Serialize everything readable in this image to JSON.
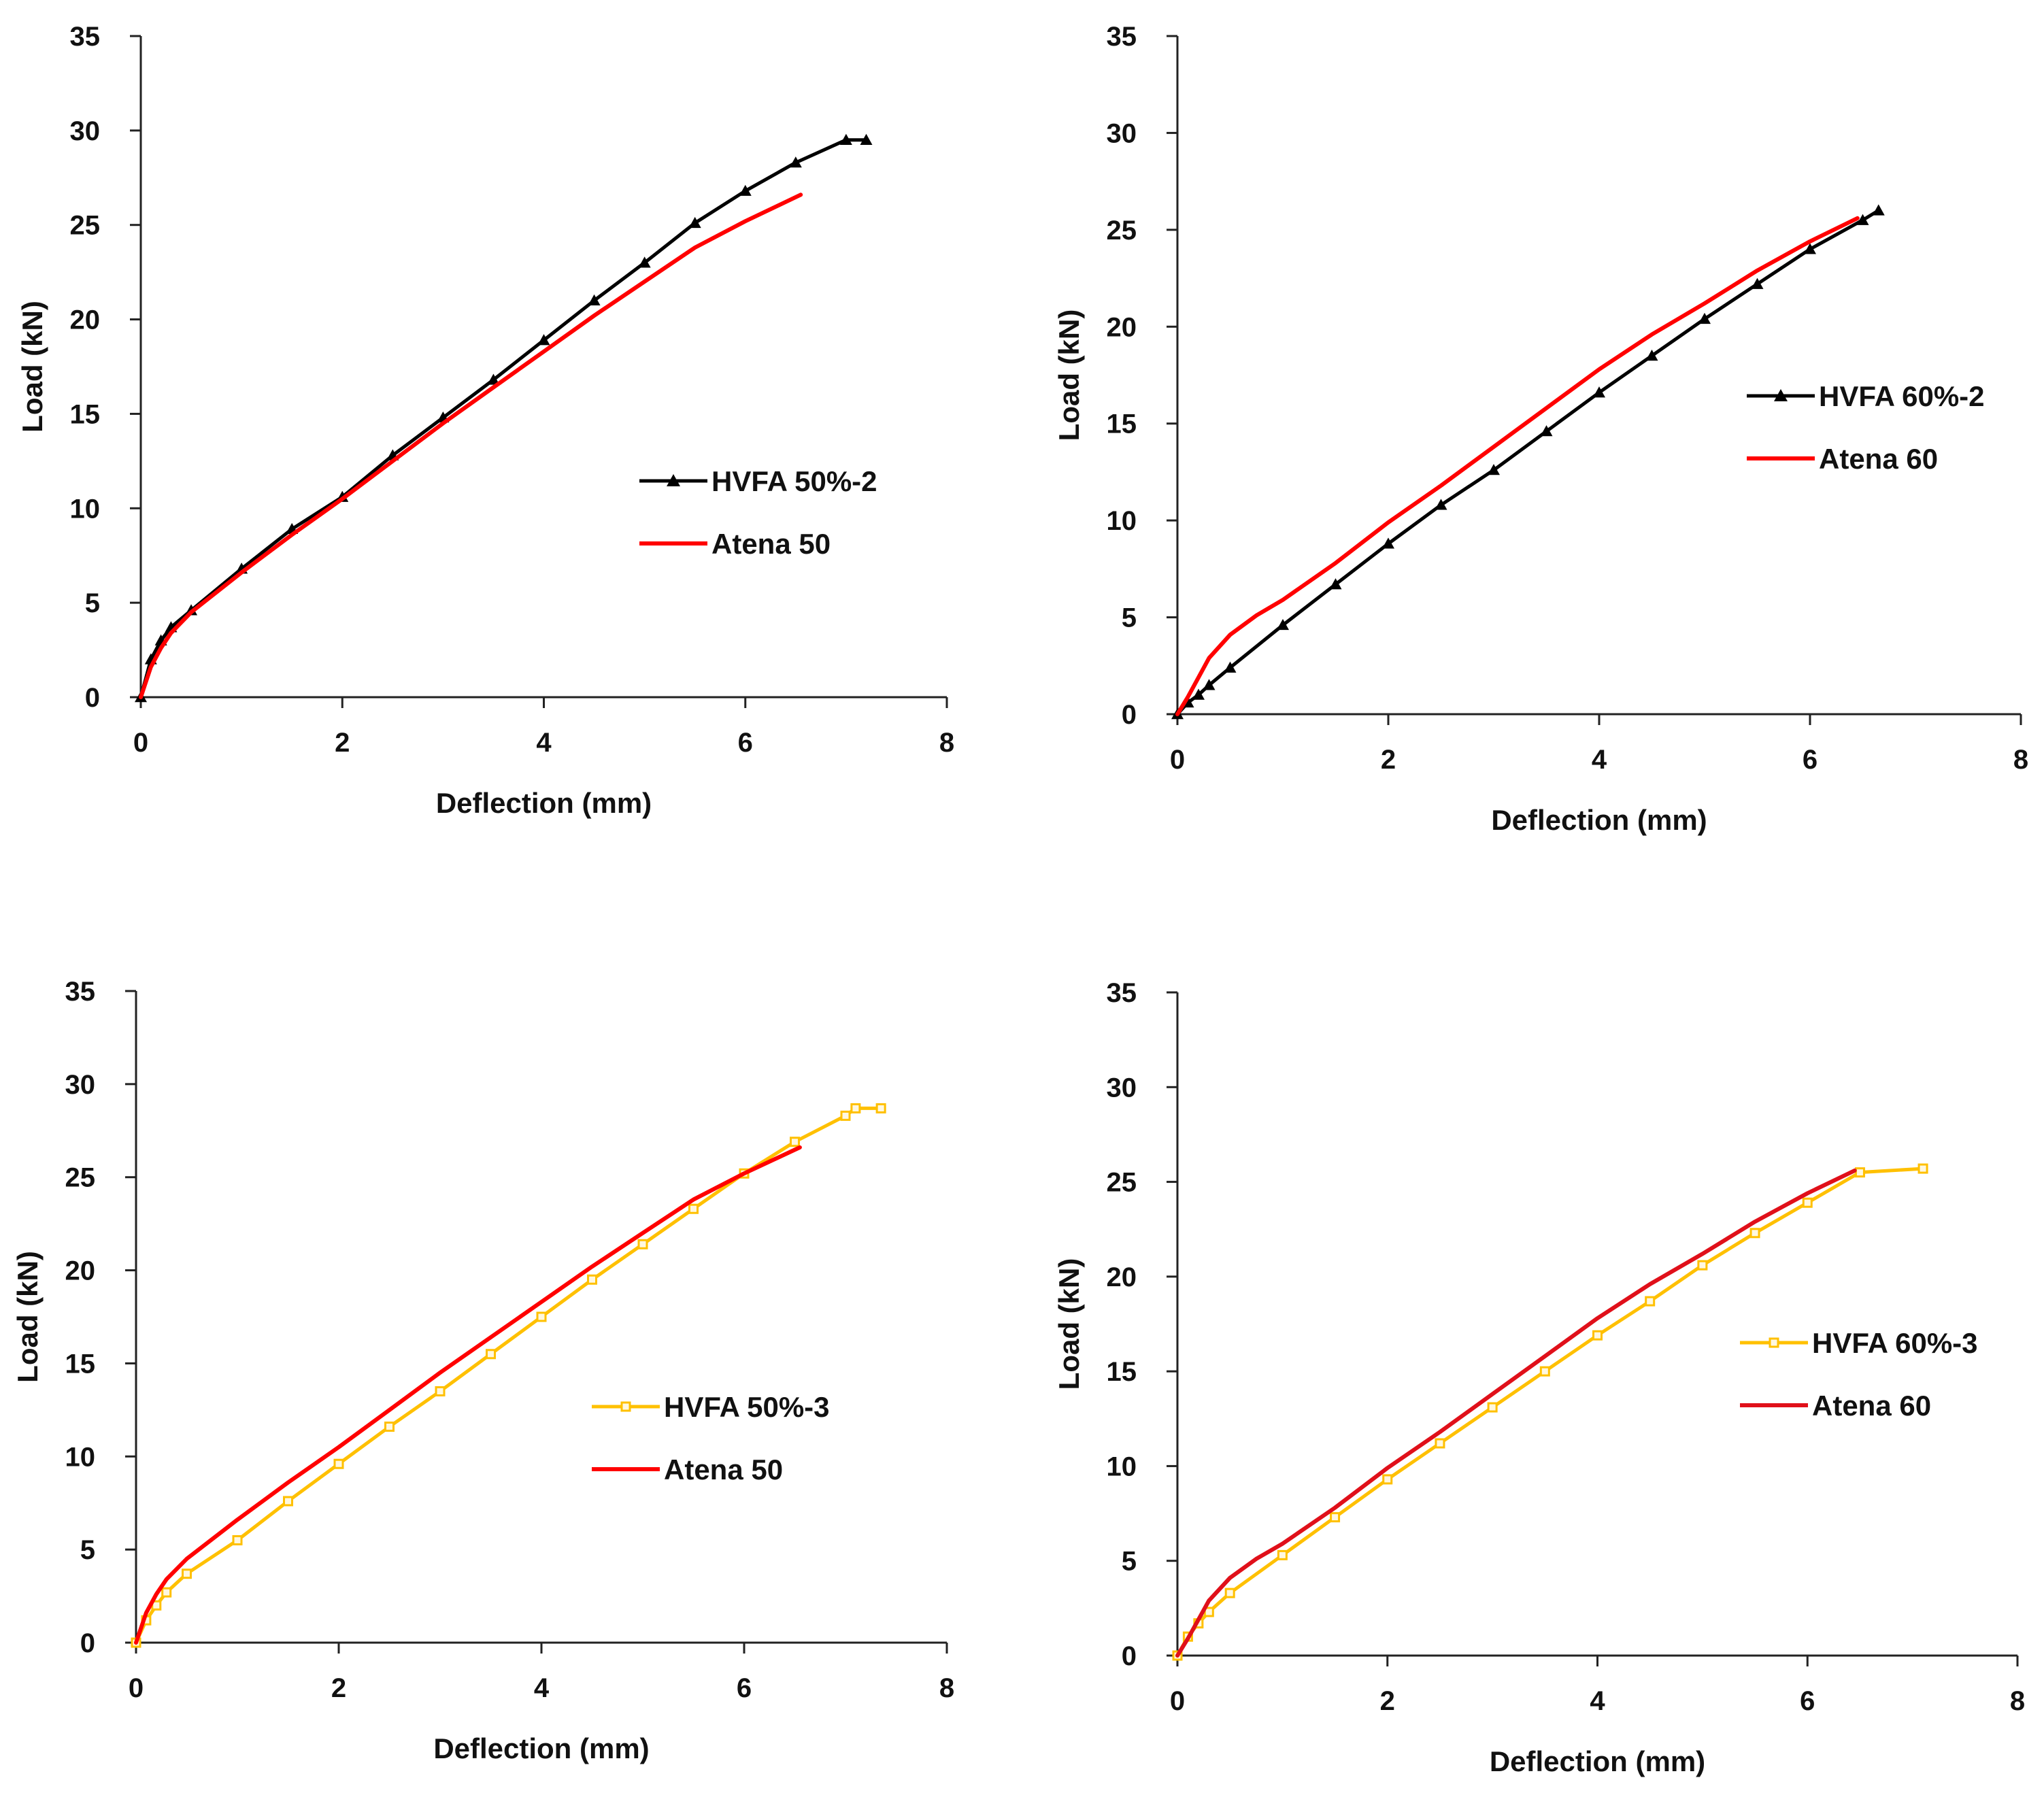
{
  "chart_data": [
    {
      "type": "line",
      "xlabel": "Deflection (mm)",
      "ylabel": "Load (kN)",
      "xlim": [
        0,
        8
      ],
      "ylim": [
        0,
        35
      ],
      "xticks": [
        0,
        2,
        4,
        6,
        8
      ],
      "yticks": [
        0,
        5,
        10,
        15,
        20,
        25,
        30,
        35
      ],
      "grid": false,
      "legend_position": "right-middle",
      "series": [
        {
          "name": "HVFA 50%-2",
          "color": "#000000",
          "marker": "triangle",
          "x": [
            0,
            0.1,
            0.2,
            0.3,
            0.5,
            1,
            1.5,
            2,
            2.5,
            3,
            3.5,
            4,
            4.5,
            5,
            5.5,
            6,
            6.5,
            7,
            7.2
          ],
          "y": [
            0,
            2.0,
            3.0,
            3.7,
            4.6,
            6.8,
            8.9,
            10.6,
            12.8,
            14.8,
            16.8,
            18.9,
            21.0,
            23.0,
            25.1,
            26.8,
            28.3,
            29.5,
            29.5
          ]
        },
        {
          "name": "Atena 50",
          "color": "#ff0000",
          "marker": "none",
          "x": [
            0,
            0.1,
            0.2,
            0.3,
            0.5,
            1,
            1.5,
            2,
            2.5,
            3,
            3.5,
            4,
            4.5,
            5,
            5.5,
            6,
            6.55
          ],
          "y": [
            0,
            1.6,
            2.6,
            3.4,
            4.5,
            6.6,
            8.6,
            10.5,
            12.5,
            14.5,
            16.4,
            18.3,
            20.2,
            22.0,
            23.8,
            25.2,
            26.6
          ]
        }
      ]
    },
    {
      "type": "line",
      "xlabel": "Deflection (mm)",
      "ylabel": "Load (kN)",
      "xlim": [
        0,
        8
      ],
      "ylim": [
        0,
        35
      ],
      "xticks": [
        0,
        2,
        4,
        6,
        8
      ],
      "yticks": [
        0,
        5,
        10,
        15,
        20,
        25,
        30,
        35
      ],
      "grid": false,
      "legend_position": "right-middle",
      "series": [
        {
          "name": "HVFA 60%-2",
          "color": "#000000",
          "marker": "triangle",
          "x": [
            0,
            0.1,
            0.2,
            0.3,
            0.5,
            1,
            1.5,
            2,
            2.5,
            3,
            3.5,
            4,
            4.5,
            5,
            5.5,
            6,
            6.5,
            6.65
          ],
          "y": [
            0,
            0.6,
            1.0,
            1.5,
            2.4,
            4.6,
            6.7,
            8.8,
            10.8,
            12.6,
            14.6,
            16.6,
            18.5,
            20.4,
            22.2,
            24.0,
            25.5,
            26.0
          ]
        },
        {
          "name": "Atena 60",
          "color": "#ff0000",
          "marker": "none",
          "x": [
            0,
            0.1,
            0.2,
            0.3,
            0.5,
            0.75,
            1,
            1.5,
            2,
            2.5,
            3,
            3.5,
            4,
            4.5,
            5,
            5.5,
            6,
            6.45
          ],
          "y": [
            0,
            0.9,
            1.9,
            2.9,
            4.1,
            5.1,
            5.9,
            7.8,
            9.9,
            11.8,
            13.8,
            15.8,
            17.8,
            19.6,
            21.2,
            22.9,
            24.4,
            25.6
          ]
        }
      ]
    },
    {
      "type": "line",
      "xlabel": "Deflection (mm)",
      "ylabel": "Load (kN)",
      "xlim": [
        0,
        8
      ],
      "ylim": [
        0,
        35
      ],
      "xticks": [
        0,
        2,
        4,
        6,
        8
      ],
      "yticks": [
        0,
        5,
        10,
        15,
        20,
        25,
        30,
        35
      ],
      "grid": false,
      "legend_position": "right-middle",
      "series": [
        {
          "name": "HVFA 50%-3",
          "color": "#ffc000",
          "marker": "square",
          "x": [
            0,
            0.1,
            0.2,
            0.3,
            0.5,
            1,
            1.5,
            2,
            2.5,
            3,
            3.5,
            4,
            4.5,
            5,
            5.5,
            6,
            6.5,
            7,
            7.1,
            7.35
          ],
          "y": [
            0,
            1.2,
            2.0,
            2.7,
            3.7,
            5.5,
            7.6,
            9.6,
            11.6,
            13.5,
            15.5,
            17.5,
            19.5,
            21.4,
            23.3,
            25.2,
            26.9,
            28.3,
            28.7,
            28.7
          ]
        },
        {
          "name": "Atena 50",
          "color": "#ff0000",
          "marker": "none",
          "x": [
            0,
            0.1,
            0.2,
            0.3,
            0.5,
            1,
            1.5,
            2,
            2.5,
            3,
            3.5,
            4,
            4.5,
            5,
            5.5,
            6,
            6.55
          ],
          "y": [
            0,
            1.6,
            2.6,
            3.4,
            4.5,
            6.6,
            8.6,
            10.5,
            12.5,
            14.5,
            16.4,
            18.3,
            20.2,
            22.0,
            23.8,
            25.2,
            26.6
          ]
        }
      ]
    },
    {
      "type": "line",
      "xlabel": "Deflection (mm)",
      "ylabel": "Load (kN)",
      "xlim": [
        0,
        8
      ],
      "ylim": [
        0,
        35
      ],
      "xticks": [
        0,
        2,
        4,
        6,
        8
      ],
      "yticks": [
        0,
        5,
        10,
        15,
        20,
        25,
        30,
        35
      ],
      "grid": false,
      "legend_position": "right-middle",
      "series": [
        {
          "name": "HVFA 60%-3",
          "color": "#ffc000",
          "marker": "square",
          "x": [
            0,
            0.1,
            0.2,
            0.3,
            0.5,
            1,
            1.5,
            2,
            2.5,
            3,
            3.5,
            4,
            4.5,
            5,
            5.5,
            6,
            6.5,
            7.1
          ],
          "y": [
            0,
            1.0,
            1.7,
            2.3,
            3.3,
            5.3,
            7.3,
            9.3,
            11.2,
            13.1,
            15.0,
            16.9,
            18.7,
            20.6,
            22.3,
            23.9,
            25.5,
            25.7
          ]
        },
        {
          "name": "Atena 60",
          "color": "#e0101a",
          "marker": "none",
          "x": [
            0,
            0.1,
            0.2,
            0.3,
            0.5,
            0.75,
            1,
            1.5,
            2,
            2.5,
            3,
            3.5,
            4,
            4.5,
            5,
            5.5,
            6,
            6.45
          ],
          "y": [
            0,
            0.9,
            1.9,
            2.9,
            4.1,
            5.1,
            5.9,
            7.8,
            9.9,
            11.8,
            13.8,
            15.8,
            17.8,
            19.6,
            21.2,
            22.9,
            24.4,
            25.6
          ]
        }
      ]
    }
  ]
}
